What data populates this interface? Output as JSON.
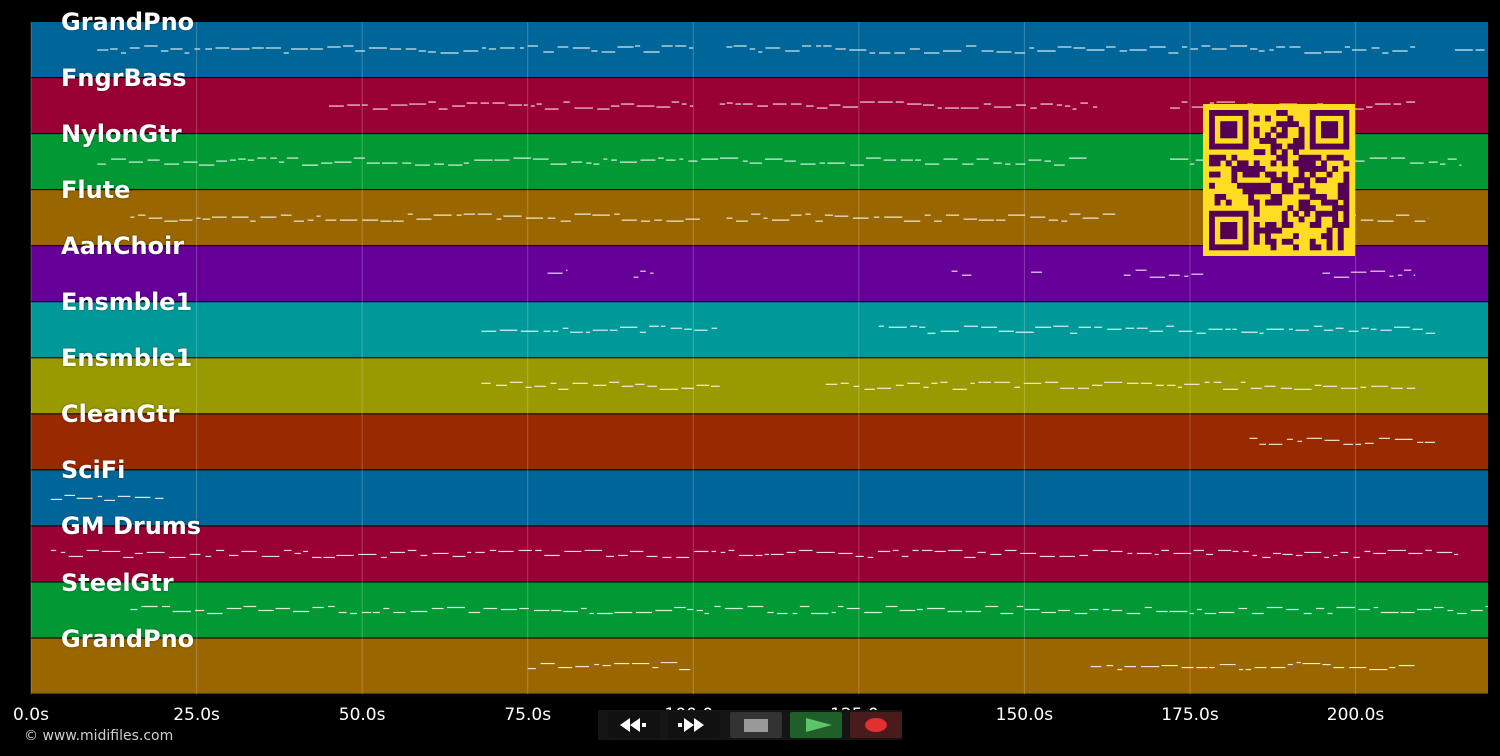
{
  "tracks": [
    {
      "name": "GrandPno",
      "color": "#006699"
    },
    {
      "name": "FngrBass",
      "color": "#990033"
    },
    {
      "name": "NylonGtr",
      "color": "#009933"
    },
    {
      "name": "Flute",
      "color": "#996600"
    },
    {
      "name": "AahChoir",
      "color": "#660099"
    },
    {
      "name": "Ensmble1",
      "color": "#009999"
    },
    {
      "name": "Ensmble1",
      "color": "#999900"
    },
    {
      "name": "CleanGtr",
      "color": "#992900"
    },
    {
      "name": "SciFi",
      "color": "#006699"
    },
    {
      "name": "GM Drums",
      "color": "#990033"
    },
    {
      "name": "SteelGtr",
      "color": "#009933"
    },
    {
      "name": "GrandPno",
      "color": "#996600"
    }
  ],
  "timeline": {
    "ticks": [
      "0.0s",
      "25.0s",
      "50.0s",
      "75.0s",
      "100.0s",
      "125.0s",
      "150.0s",
      "175.0s",
      "200.0s"
    ],
    "max_seconds": 220
  },
  "transport": {
    "buttons": [
      {
        "name": "rewind-button",
        "icon": "rewind-icon"
      },
      {
        "name": "fast-forward-button",
        "icon": "fast-forward-icon"
      },
      {
        "name": "stop-button",
        "icon": "stop-icon"
      },
      {
        "name": "play-button",
        "icon": "play-icon"
      },
      {
        "name": "record-button",
        "icon": "record-icon"
      }
    ]
  },
  "footer": {
    "copyright": "© www.midifiles.com"
  },
  "colors": {
    "background": "#000000",
    "grid": "#ffffff",
    "note": "#ffffff",
    "qr_bg": "#ffdd22",
    "qr_fg": "#550055"
  }
}
